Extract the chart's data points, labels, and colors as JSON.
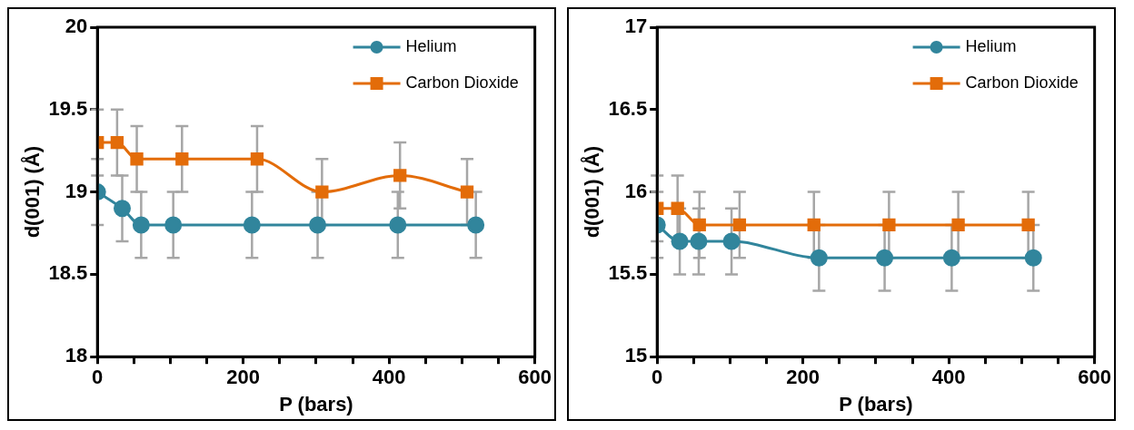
{
  "chart_data": [
    {
      "type": "line",
      "xlabel": "P (bars)",
      "ylabel": "d(001) (Å)",
      "xlim": [
        0,
        600
      ],
      "xticks": [
        0,
        {
          "value": 50,
          "label": null
        },
        {
          "value": 100,
          "label": null
        },
        {
          "value": 150,
          "label": null
        },
        200,
        {
          "value": 250,
          "label": null
        },
        {
          "value": 300,
          "label": null
        },
        {
          "value": 350,
          "label": null
        },
        400,
        {
          "value": 450,
          "label": null
        },
        {
          "value": 500,
          "label": null
        },
        {
          "value": 550,
          "label": null
        },
        600
      ],
      "ylim": [
        18,
        20
      ],
      "yticks": [
        18,
        18.5,
        19,
        19.5,
        20
      ],
      "grid": false,
      "legend": "top right",
      "series": [
        {
          "name": "Helium",
          "color": "#31859c",
          "marker": "circle",
          "x": [
            0,
            34,
            60,
            104,
            212,
            302,
            412,
            519
          ],
          "values": [
            19.0,
            18.9,
            18.8,
            18.8,
            18.8,
            18.8,
            18.8,
            18.8
          ],
          "errors": [
            0.2,
            0.2,
            0.2,
            0.2,
            0.2,
            0.2,
            0.2,
            0.2
          ]
        },
        {
          "name": "Carbon Dioxide",
          "color": "#e36c09",
          "marker": "square",
          "x": [
            0,
            27,
            54,
            116,
            219,
            308,
            415,
            507
          ],
          "values": [
            19.3,
            19.3,
            19.2,
            19.2,
            19.2,
            19.0,
            19.1,
            19.0
          ],
          "errors": [
            0.2,
            0.2,
            0.2,
            0.2,
            0.2,
            0.2,
            0.2,
            0.2
          ]
        }
      ]
    },
    {
      "type": "line",
      "xlabel": "P (bars)",
      "ylabel": "d(001) (Å)",
      "xlim": [
        0,
        600
      ],
      "xticks": [
        0,
        {
          "value": 50,
          "label": null
        },
        {
          "value": 100,
          "label": null
        },
        {
          "value": 150,
          "label": null
        },
        200,
        {
          "value": 250,
          "label": null
        },
        {
          "value": 300,
          "label": null
        },
        {
          "value": 350,
          "label": null
        },
        400,
        {
          "value": 450,
          "label": null
        },
        {
          "value": 500,
          "label": null
        },
        {
          "value": 550,
          "label": null
        },
        600
      ],
      "ylim": [
        15,
        17
      ],
      "yticks": [
        15,
        15.5,
        16,
        16.5,
        17
      ],
      "grid": false,
      "legend": "top right",
      "series": [
        {
          "name": "Helium",
          "color": "#31859c",
          "marker": "circle",
          "x": [
            0,
            31,
            57,
            102,
            222,
            312,
            404,
            516
          ],
          "values": [
            15.8,
            15.7,
            15.7,
            15.7,
            15.6,
            15.6,
            15.6,
            15.6
          ],
          "errors": [
            0.2,
            0.2,
            0.2,
            0.2,
            0.2,
            0.2,
            0.2,
            0.2
          ]
        },
        {
          "name": "Carbon Dioxide",
          "color": "#e36c09",
          "marker": "square",
          "x": [
            0,
            28,
            58,
            113,
            215,
            318,
            413,
            509
          ],
          "values": [
            15.9,
            15.9,
            15.8,
            15.8,
            15.8,
            15.8,
            15.8,
            15.8
          ],
          "errors": [
            0.2,
            0.2,
            0.2,
            0.2,
            0.2,
            0.2,
            0.2,
            0.2
          ]
        }
      ]
    }
  ]
}
